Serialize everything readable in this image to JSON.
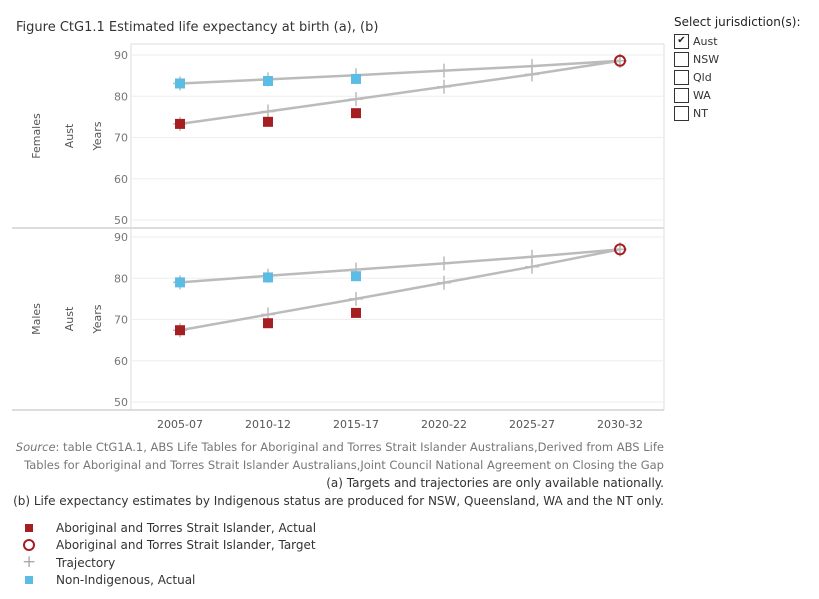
{
  "title": "Figure CtG1.1 Estimated life expectancy at birth (a), (b)",
  "selector": {
    "title": "Select jurisdiction(s):",
    "options": [
      {
        "label": "Aust",
        "checked": true
      },
      {
        "label": "NSW",
        "checked": false
      },
      {
        "label": "Qld",
        "checked": false
      },
      {
        "label": "WA",
        "checked": false
      },
      {
        "label": "NT",
        "checked": false
      }
    ]
  },
  "notes": {
    "source_label": "Source",
    "source_text": ": table CtG1A.1, ABS Life Tables for Aboriginal and Torres Strait Islander Australians,Derived from ABS Life",
    "source_text2": "Tables for Aboriginal and Torres Strait Islander Australians,Joint Council National Agreement on Closing the Gap",
    "note_a": "(a) Targets and trajectories are only available nationally.",
    "note_b": "(b) Life expectancy estimates by Indigenous status are produced for NSW, Queensland, WA and the NT only."
  },
  "legend": [
    {
      "label": "Aboriginal and Torres Strait Islander, Actual",
      "symbol": "square",
      "color": "#a51e22"
    },
    {
      "label": "Aboriginal and Torres Strait Islander, Target",
      "symbol": "ring",
      "color": "#a51e22"
    },
    {
      "label": "Trajectory",
      "symbol": "plus",
      "color": "#aaaaaa"
    },
    {
      "label": "Non-Indigenous, Actual",
      "symbol": "square",
      "color": "#5bbce4"
    }
  ],
  "chart_data": {
    "type": "scatter",
    "categories": [
      "2005-07",
      "2010-12",
      "2015-17",
      "2020-22",
      "2025-27",
      "2030-32"
    ],
    "ylim": [
      50,
      90
    ],
    "yticks": [
      50,
      60,
      70,
      80,
      90
    ],
    "y_axis_title": "Years",
    "colors": {
      "indigenous": "#a51e22",
      "non_indigenous": "#5bbce4",
      "trajectory": "#bbbbbb"
    },
    "panels": [
      {
        "row_label": "Females",
        "jurisdiction": "Aust",
        "indigenous_actual": [
          73.3,
          73.8,
          75.9,
          null,
          null,
          null
        ],
        "indigenous_target": [
          null,
          null,
          null,
          null,
          null,
          88.6
        ],
        "indigenous_trajectory": [
          73.3,
          76.3,
          79.3,
          82.3,
          85.3,
          88.6
        ],
        "non_indigenous_actual": [
          83.1,
          83.7,
          84.2,
          null,
          null,
          null
        ],
        "non_indigenous_trajectory": [
          83.1,
          84.1,
          85.1,
          86.2,
          87.3,
          88.6
        ]
      },
      {
        "row_label": "Males",
        "jurisdiction": "Aust",
        "indigenous_actual": [
          67.4,
          69.1,
          71.6,
          null,
          null,
          null
        ],
        "indigenous_target": [
          null,
          null,
          null,
          null,
          null,
          87.0
        ],
        "indigenous_trajectory": [
          67.4,
          71.2,
          75.0,
          78.9,
          82.8,
          87.0
        ],
        "non_indigenous_actual": [
          79.0,
          80.2,
          80.5,
          null,
          null,
          null
        ],
        "non_indigenous_trajectory": [
          79.0,
          80.6,
          82.1,
          83.6,
          85.2,
          87.0
        ]
      }
    ]
  }
}
